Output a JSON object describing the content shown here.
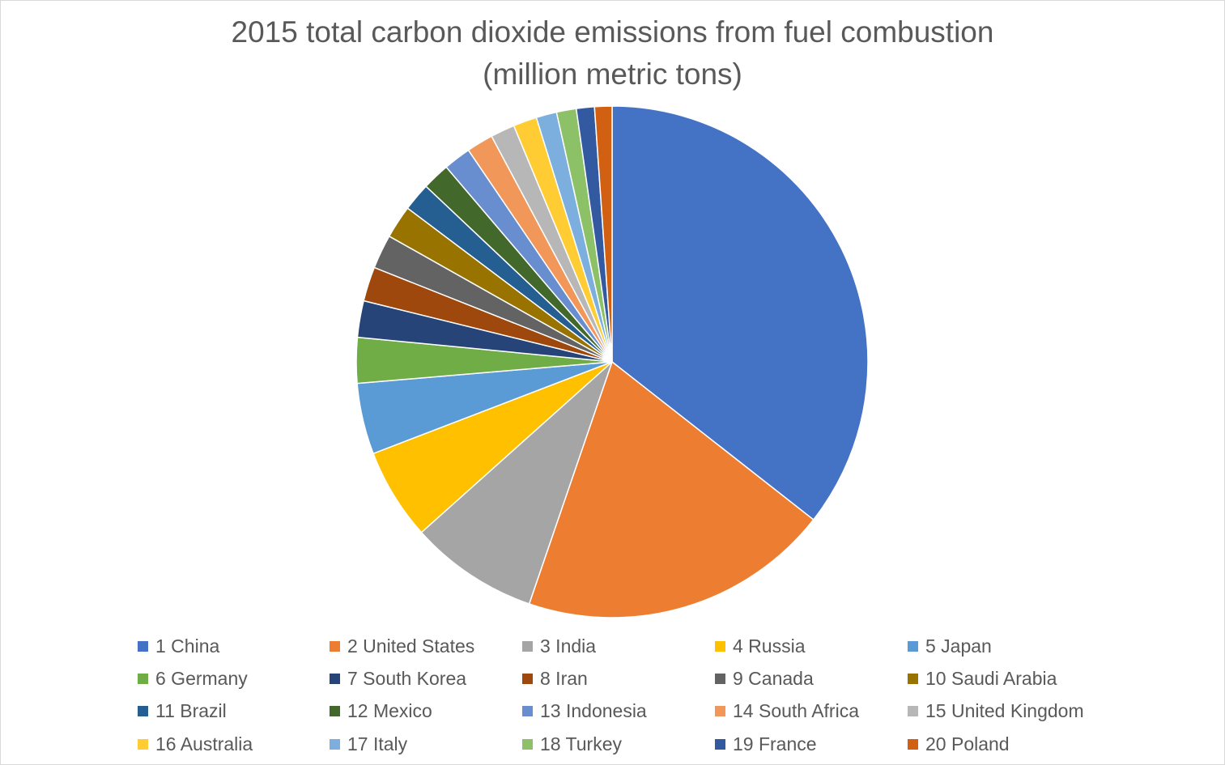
{
  "chart_data": {
    "type": "pie",
    "title_lines": [
      "2015 total carbon dioxide emissions from fuel combustion",
      "(million metric tons)"
    ],
    "legend_position": "bottom",
    "categories": [
      "1 China",
      "2 United States",
      "3 India",
      "4 Russia",
      "5 Japan",
      "6 Germany",
      "7 South Korea",
      "8 Iran",
      "9 Canada",
      "10 Saudi Arabia",
      "11 Brazil",
      "12 Mexico",
      "13 Indonesia",
      "14 South Africa",
      "15 United Kingdom",
      "16 Australia",
      "17 Italy",
      "18 Turkey",
      "19 France",
      "20 Poland"
    ],
    "values": [
      9041,
      4998,
      2066,
      1469,
      1142,
      730,
      586,
      552,
      549,
      531,
      451,
      442,
      441,
      427,
      389,
      379,
      330,
      317,
      290,
      279
    ],
    "colors": [
      "#4472C4",
      "#ED7D31",
      "#A5A5A5",
      "#FFC000",
      "#5B9BD5",
      "#70AD47",
      "#264478",
      "#9E480E",
      "#636363",
      "#997300",
      "#255E91",
      "#43682B",
      "#698ED0",
      "#F1975A",
      "#B7B7B7",
      "#FFCD33",
      "#7CAFDD",
      "#8CC168",
      "#335AA1",
      "#D26012"
    ]
  }
}
